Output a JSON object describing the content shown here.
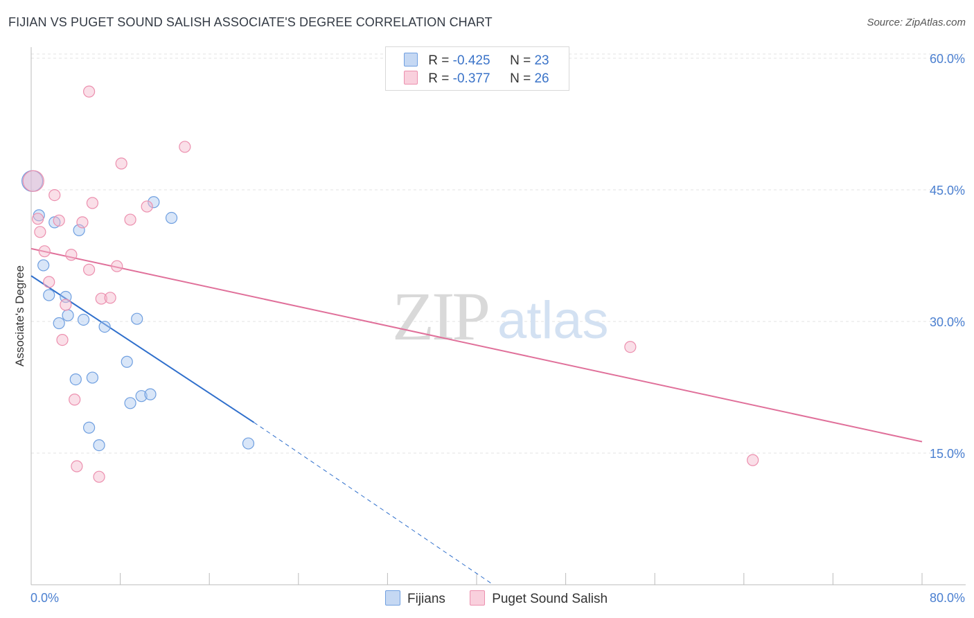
{
  "title": "FIJIAN VS PUGET SOUND SALISH ASSOCIATE'S DEGREE CORRELATION CHART",
  "source": "Source: ZipAtlas.com",
  "watermark": {
    "zip": "ZIP",
    "atlas": "atlas"
  },
  "legend": {
    "fijians": {
      "r_label": "R = ",
      "r_value": "-0.425",
      "n_label": "N = ",
      "n_value": "23"
    },
    "salish": {
      "r_label": "R = ",
      "r_value": "-0.377",
      "n_label": "N = ",
      "n_value": "26"
    }
  },
  "chart_data": {
    "type": "scatter",
    "title": "FIJIAN VS PUGET SOUND SALISH ASSOCIATE'S DEGREE CORRELATION CHART",
    "xlabel": "",
    "ylabel": "Associate's Degree",
    "xlim": [
      0,
      80
    ],
    "ylim": [
      0,
      62
    ],
    "x_tick_labels": [
      "0.0%",
      "80.0%"
    ],
    "y_ticks": [
      15,
      30,
      45,
      60
    ],
    "y_tick_labels": [
      "15.0%",
      "30.0%",
      "45.0%",
      "60.0%"
    ],
    "colors": {
      "fijians": "#6f9fe0",
      "salish": "#ec8fae",
      "fijians_line": "#2f6fcc",
      "salish_line": "#e0709a"
    },
    "series": [
      {
        "name": "Fijians",
        "points": [
          [
            0.1,
            46.0
          ],
          [
            0.7,
            42.1
          ],
          [
            1.1,
            36.4
          ],
          [
            1.6,
            33.0
          ],
          [
            2.1,
            41.3
          ],
          [
            2.5,
            29.8
          ],
          [
            3.1,
            32.8
          ],
          [
            3.3,
            30.7
          ],
          [
            4.0,
            23.4
          ],
          [
            4.3,
            40.4
          ],
          [
            4.7,
            30.2
          ],
          [
            5.2,
            17.9
          ],
          [
            5.5,
            23.6
          ],
          [
            6.1,
            15.9
          ],
          [
            6.6,
            29.4
          ],
          [
            8.6,
            25.4
          ],
          [
            8.9,
            20.7
          ],
          [
            9.5,
            30.3
          ],
          [
            9.9,
            21.5
          ],
          [
            10.7,
            21.7
          ],
          [
            11.0,
            43.6
          ],
          [
            12.6,
            41.8
          ],
          [
            19.5,
            16.1
          ]
        ],
        "trend": {
          "x_start": 0.0,
          "y_start": 35.2,
          "x_solid_end": 20.0,
          "y_solid_end": 18.5,
          "x_dash_end": 41.5,
          "y_dash_end": 0.0
        }
      },
      {
        "name": "Puget Sound Salish",
        "points": [
          [
            0.2,
            46.0
          ],
          [
            0.6,
            41.7
          ],
          [
            0.8,
            40.2
          ],
          [
            1.2,
            38.0
          ],
          [
            1.6,
            34.5
          ],
          [
            2.1,
            44.4
          ],
          [
            2.5,
            41.5
          ],
          [
            2.8,
            27.9
          ],
          [
            3.1,
            31.9
          ],
          [
            3.6,
            37.6
          ],
          [
            3.9,
            21.1
          ],
          [
            4.1,
            13.5
          ],
          [
            4.6,
            41.3
          ],
          [
            5.2,
            35.9
          ],
          [
            5.5,
            43.5
          ],
          [
            5.2,
            56.2
          ],
          [
            6.1,
            12.3
          ],
          [
            6.3,
            32.6
          ],
          [
            7.1,
            32.7
          ],
          [
            7.7,
            36.3
          ],
          [
            8.1,
            48.0
          ],
          [
            8.9,
            41.6
          ],
          [
            10.4,
            43.1
          ],
          [
            13.8,
            49.9
          ],
          [
            53.8,
            27.1
          ],
          [
            64.8,
            14.2
          ]
        ],
        "trend": {
          "x_start": 0.0,
          "y_start": 38.3,
          "x_end": 80.0,
          "y_end": 16.3
        }
      }
    ]
  }
}
